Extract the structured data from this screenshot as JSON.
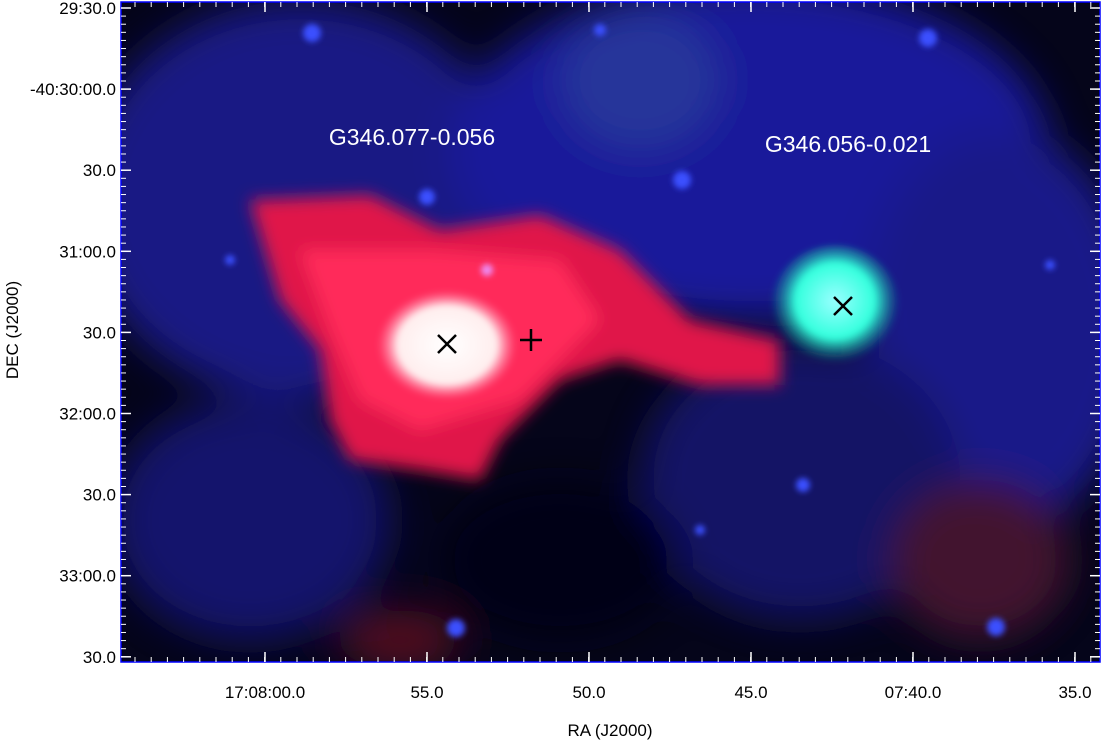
{
  "figure": {
    "x_axis": {
      "label": "RA (J2000)",
      "ticks": [
        "17:08:00.0",
        "55.0",
        "50.0",
        "45.0",
        "07:40.0",
        "35.0"
      ]
    },
    "y_axis": {
      "label": "DEC (J2000)",
      "ticks": [
        "29:30.0",
        "-40:30:00.0",
        "30.0",
        "31:00.0",
        "30.0",
        "32:00.0",
        "30.0",
        "33:00.0",
        "30.0"
      ]
    },
    "annotations": [
      "G346.077-0.056",
      "G346.056-0.021"
    ]
  }
}
